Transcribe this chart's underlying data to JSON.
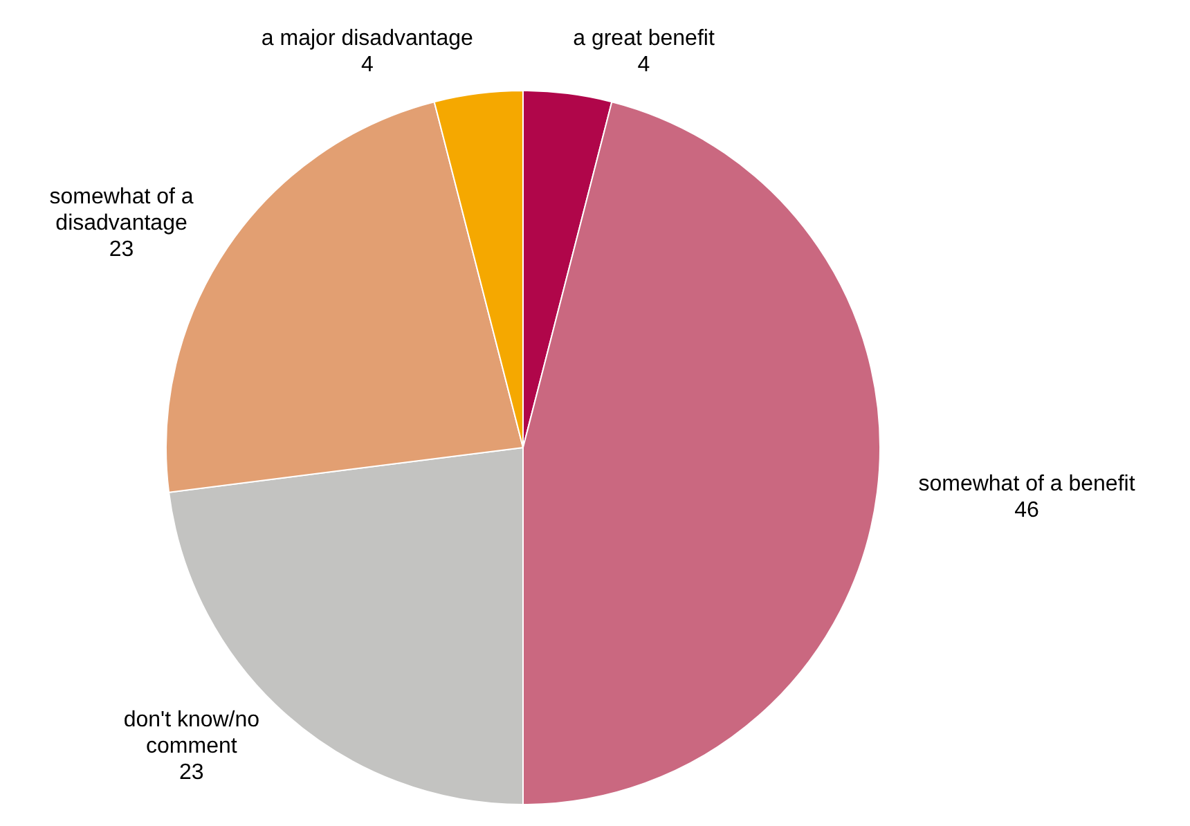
{
  "chart_data": {
    "type": "pie",
    "categories": [
      "a great benefit",
      "somewhat of a benefit",
      "don't know/no comment",
      "somewhat of a disadvantage",
      "a major disadvantage"
    ],
    "values": [
      4,
      46,
      23,
      23,
      4
    ],
    "colors": [
      "#b0064a",
      "#ca6880",
      "#c3c3c1",
      "#e29f72",
      "#f5a800"
    ],
    "data_labels": true,
    "legend": false
  }
}
